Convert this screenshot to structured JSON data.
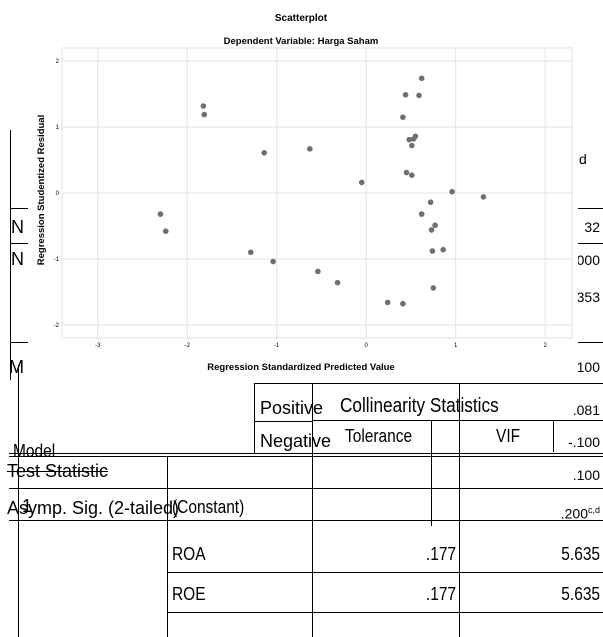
{
  "chart_data": {
    "type": "scatter",
    "title": "Scatterplot",
    "subtitle": "Dependent Variable: Harga Saham",
    "xlabel": "Regression Standardized Predicted Value",
    "ylabel": "Regression Studentized Residual",
    "xlim": [
      -3.4,
      2.3
    ],
    "ylim": [
      -2.2,
      2.2
    ],
    "xticks": [
      -3,
      -2,
      -1,
      0,
      1,
      2
    ],
    "yticks": [
      -2,
      -1,
      0,
      1,
      2
    ],
    "grid": true,
    "points": [
      {
        "x": -1.82,
        "y": 1.32
      },
      {
        "x": -1.81,
        "y": 1.19
      },
      {
        "x": -1.14,
        "y": 0.61
      },
      {
        "x": -0.63,
        "y": 0.67
      },
      {
        "x": -2.3,
        "y": -0.32
      },
      {
        "x": -2.24,
        "y": -0.58
      },
      {
        "x": -1.29,
        "y": -0.9
      },
      {
        "x": -1.04,
        "y": -1.04
      },
      {
        "x": -0.54,
        "y": -1.19
      },
      {
        "x": -0.32,
        "y": -1.36
      },
      {
        "x": -0.05,
        "y": 0.16
      },
      {
        "x": 0.24,
        "y": -1.66
      },
      {
        "x": 0.41,
        "y": -1.68
      },
      {
        "x": 0.44,
        "y": 1.49
      },
      {
        "x": 0.41,
        "y": 1.15
      },
      {
        "x": 0.48,
        "y": 0.81
      },
      {
        "x": 0.51,
        "y": 0.72
      },
      {
        "x": 0.53,
        "y": 0.82
      },
      {
        "x": 0.55,
        "y": 0.86
      },
      {
        "x": 0.59,
        "y": 1.48
      },
      {
        "x": 0.62,
        "y": 1.74
      },
      {
        "x": 0.45,
        "y": 0.31
      },
      {
        "x": 0.51,
        "y": 0.27
      },
      {
        "x": 0.62,
        "y": -0.32
      },
      {
        "x": 0.72,
        "y": -0.14
      },
      {
        "x": 0.73,
        "y": -0.56
      },
      {
        "x": 0.77,
        "y": -0.49
      },
      {
        "x": 0.74,
        "y": -0.88
      },
      {
        "x": 0.86,
        "y": -0.86
      },
      {
        "x": 0.75,
        "y": -1.44
      },
      {
        "x": 0.96,
        "y": 0.02
      },
      {
        "x": 1.31,
        "y": -0.06
      }
    ]
  },
  "ks_table": {
    "right_values": [
      "d",
      "32",
      "000",
      "353",
      "100",
      ".081",
      "-.100",
      ".100",
      ".200"
    ],
    "sig_superscript": "c,d",
    "row_labels": [
      "N",
      "N",
      "M",
      "Test Statistic",
      "Asymp. Sig. (2-tailed)"
    ],
    "positive_label": "Positive",
    "negative_label": "Negative"
  },
  "coef_table": {
    "group_header": "Collinearity Statistics",
    "model_header": "Model",
    "tolerance_header": "Tolerance",
    "vif_header": "VIF",
    "model_number": "1",
    "rows": [
      {
        "label": "(Constant)",
        "tolerance": "",
        "vif": ""
      },
      {
        "label": "ROA",
        "tolerance": ".177",
        "vif": "5.635"
      },
      {
        "label": "ROE",
        "tolerance": ".177",
        "vif": "5.635"
      }
    ]
  }
}
